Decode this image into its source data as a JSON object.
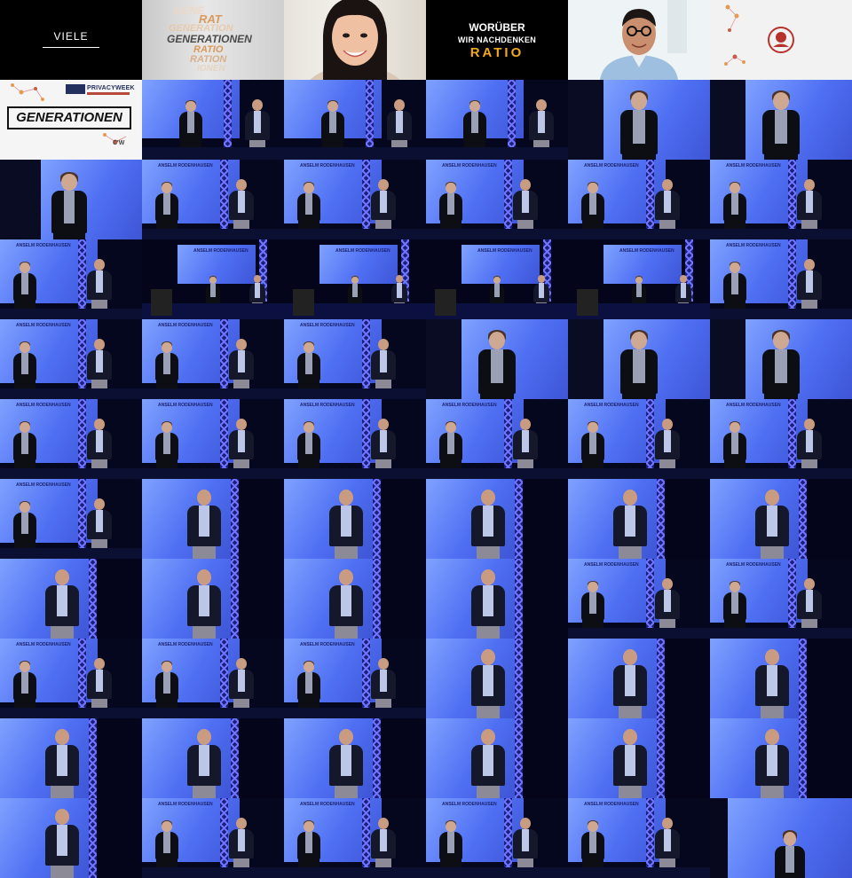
{
  "tiles_title": {
    "viele": "VIELE",
    "words": [
      "GENE",
      "RAT",
      "GENERATION",
      "GENERATIONEN",
      "RATIO",
      "RATION",
      "IONEN"
    ],
    "ratio_lines": [
      "WORÜBER",
      "WIR NACHDENKEN",
      "RATIO"
    ],
    "generationen": "GENERATIONEN",
    "privacyweek": "PRIVACYWEEK",
    "cw": "C'W"
  },
  "stage": {
    "speaker_label": "ANSELM RODENHAUSEN",
    "colors": {
      "screen": "#6f8cff",
      "truss": "#2b33b9",
      "floor": "#0b0f32",
      "accent": "#f0a81e"
    }
  },
  "photos": [
    {
      "scene": "wide-two"
    },
    {
      "scene": "wide-two"
    },
    {
      "scene": "wide-two"
    },
    {
      "scene": "close-woman"
    },
    {
      "scene": "close-woman"
    },
    {
      "scene": "close-woman-left"
    },
    {
      "scene": "two"
    },
    {
      "scene": "two"
    },
    {
      "scene": "two"
    },
    {
      "scene": "two"
    },
    {
      "scene": "two"
    },
    {
      "scene": "two"
    },
    {
      "scene": "wide-room"
    },
    {
      "scene": "wide-room"
    },
    {
      "scene": "wide-room"
    },
    {
      "scene": "wide-room"
    },
    {
      "scene": "two"
    },
    {
      "scene": "two"
    },
    {
      "scene": "two"
    },
    {
      "scene": "two"
    },
    {
      "scene": "close-woman"
    },
    {
      "scene": "close-woman"
    },
    {
      "scene": "close-woman"
    },
    {
      "scene": "two"
    },
    {
      "scene": "two"
    },
    {
      "scene": "two"
    },
    {
      "scene": "two"
    },
    {
      "scene": "two"
    },
    {
      "scene": "two"
    },
    {
      "scene": "two"
    },
    {
      "scene": "man"
    },
    {
      "scene": "man"
    },
    {
      "scene": "man"
    },
    {
      "scene": "man"
    },
    {
      "scene": "man"
    },
    {
      "scene": "man"
    },
    {
      "scene": "man"
    },
    {
      "scene": "man"
    },
    {
      "scene": "man"
    },
    {
      "scene": "two"
    },
    {
      "scene": "two"
    },
    {
      "scene": "two"
    },
    {
      "scene": "two"
    },
    {
      "scene": "two"
    },
    {
      "scene": "man"
    },
    {
      "scene": "man"
    },
    {
      "scene": "man"
    },
    {
      "scene": "man"
    },
    {
      "scene": "man"
    },
    {
      "scene": "man"
    },
    {
      "scene": "man"
    },
    {
      "scene": "man"
    },
    {
      "scene": "man"
    },
    {
      "scene": "man"
    },
    {
      "scene": "two"
    },
    {
      "scene": "two"
    },
    {
      "scene": "two"
    },
    {
      "scene": "two"
    },
    {
      "scene": "close-woman-bottom"
    }
  ]
}
